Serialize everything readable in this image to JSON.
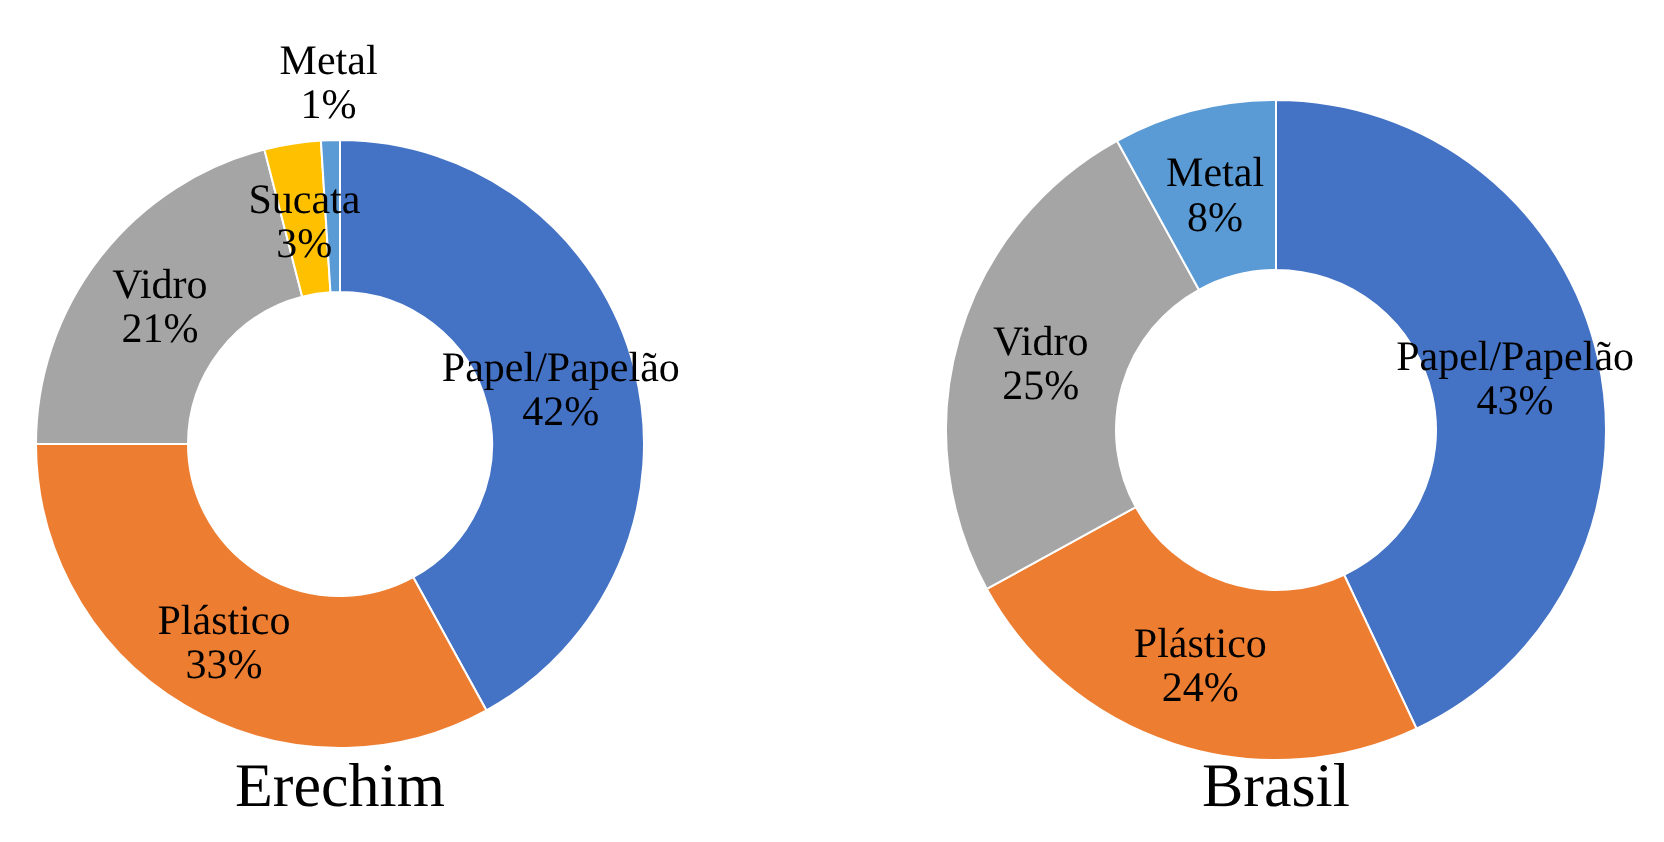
{
  "chart_data": [
    {
      "type": "donut",
      "title": "Erechim",
      "categories": [
        "Papel/Papelão",
        "Plástico",
        "Vidro",
        "Sucata",
        "Metal"
      ],
      "values": [
        42,
        33,
        21,
        3,
        1
      ],
      "colors": [
        "#4472c4",
        "#ed7d31",
        "#a5a5a5",
        "#ffc000",
        "#5b9bd5"
      ],
      "value_labels": [
        "42%",
        "33%",
        "21%",
        "3%",
        "1%"
      ]
    },
    {
      "type": "donut",
      "title": "Brasil",
      "categories": [
        "Papel/Papelão",
        "Plástico",
        "Vidro",
        "Metal"
      ],
      "values": [
        43,
        24,
        25,
        8
      ],
      "colors": [
        "#4472c4",
        "#ed7d31",
        "#a5a5a5",
        "#5b9bd5"
      ],
      "value_labels": [
        "43%",
        "24%",
        "25%",
        "8%"
      ]
    }
  ]
}
